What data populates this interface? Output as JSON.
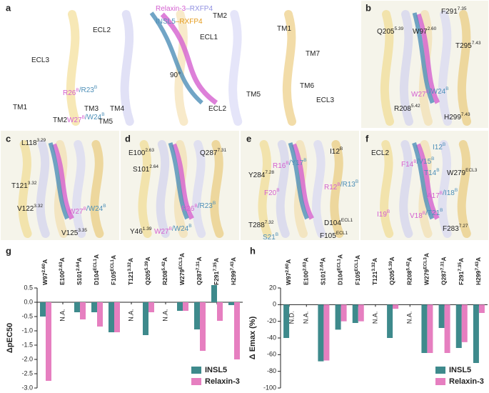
{
  "panels": [
    {
      "label": "a",
      "texts": [
        {
          "segments": [
            {
              "text": "Relaxin-3"
            },
            {
              "text": "–RXFP4"
            }
          ]
        },
        {
          "segments": [
            {
              "text": "INSL5"
            },
            {
              "text": "–RXFP4"
            }
          ]
        },
        {
          "segments": [
            {
              "text": "ECL2"
            }
          ]
        },
        {
          "segments": [
            {
              "text": "ECL3"
            }
          ]
        },
        {
          "segments": [
            {
              "text": "R26",
              "sup": "B"
            },
            {
              "text": "/R23",
              "sup": "B"
            }
          ]
        },
        {
          "segments": [
            {
              "text": "TM1"
            }
          ]
        },
        {
          "segments": [
            {
              "text": "TM3"
            }
          ]
        },
        {
          "segments": [
            {
              "text": "TM4"
            }
          ]
        },
        {
          "segments": [
            {
              "text": "W27",
              "sup": "B"
            },
            {
              "text": "/W24",
              "sup": "B"
            }
          ]
        },
        {
          "segments": [
            {
              "text": "TM2"
            }
          ]
        },
        {
          "segments": [
            {
              "text": "TM5"
            }
          ]
        },
        {
          "segments": [
            {
              "text": "90°"
            }
          ]
        },
        {
          "segments": [
            {
              "text": "TM2"
            }
          ]
        },
        {
          "segments": [
            {
              "text": "TM1"
            }
          ]
        },
        {
          "segments": [
            {
              "text": "ECL1"
            }
          ]
        },
        {
          "segments": [
            {
              "text": "TM7"
            }
          ]
        },
        {
          "segments": [
            {
              "text": "TM6"
            }
          ]
        },
        {
          "segments": [
            {
              "text": "TM5"
            }
          ]
        },
        {
          "segments": [
            {
              "text": "ECL3"
            }
          ]
        },
        {
          "segments": [
            {
              "text": "ECL2"
            }
          ]
        }
      ]
    },
    {
      "label": "b",
      "texts": [
        {
          "segments": [
            {
              "text": "F291",
              "sup": "7.35"
            }
          ]
        },
        {
          "segments": [
            {
              "text": "Q205",
              "sup": "5.39"
            }
          ]
        },
        {
          "segments": [
            {
              "text": "W97",
              "sup": "2.60"
            }
          ]
        },
        {
          "segments": [
            {
              "text": "T295",
              "sup": "7.43"
            }
          ]
        },
        {
          "segments": [
            {
              "text": "W27",
              "sup": "B"
            },
            {
              "text": "/W24",
              "sup": "B"
            }
          ]
        },
        {
          "segments": [
            {
              "text": "R208",
              "sup": "5.42"
            }
          ]
        },
        {
          "segments": [
            {
              "text": "H299",
              "sup": "7.43"
            }
          ]
        }
      ]
    },
    {
      "label": "c",
      "texts": [
        {
          "segments": [
            {
              "text": "L118",
              "sup": "3.29"
            }
          ]
        },
        {
          "segments": [
            {
              "text": "T121",
              "sup": "3.32"
            }
          ]
        },
        {
          "segments": [
            {
              "text": "V122",
              "sup": "3.32"
            }
          ]
        },
        {
          "segments": [
            {
              "text": "W27",
              "sup": "B"
            },
            {
              "text": "/W24",
              "sup": "B"
            }
          ]
        },
        {
          "segments": [
            {
              "text": "V125",
              "sup": "3.35"
            }
          ]
        }
      ]
    },
    {
      "label": "d",
      "texts": [
        {
          "segments": [
            {
              "text": "E100",
              "sup": "2.63"
            }
          ]
        },
        {
          "segments": [
            {
              "text": "Q287",
              "sup": "7.31"
            }
          ]
        },
        {
          "segments": [
            {
              "text": "S101",
              "sup": "2.64"
            }
          ]
        },
        {
          "segments": [
            {
              "text": "R26",
              "sup": "B"
            },
            {
              "text": "/R23",
              "sup": "B"
            }
          ]
        },
        {
          "segments": [
            {
              "text": "Y46",
              "sup": "1.39"
            }
          ]
        },
        {
          "segments": [
            {
              "text": "W27",
              "sup": "B"
            },
            {
              "text": "/W24",
              "sup": "B"
            }
          ]
        }
      ]
    },
    {
      "label": "e",
      "texts": [
        {
          "segments": [
            {
              "text": "R16",
              "sup": "B"
            },
            {
              "text": "/Y17",
              "sup": "B"
            }
          ]
        },
        {
          "segments": [
            {
              "text": "I12",
              "sup": "B"
            }
          ]
        },
        {
          "segments": [
            {
              "text": "Y284",
              "sup": "7.28"
            }
          ]
        },
        {
          "segments": [
            {
              "text": "R12",
              "sup": "B"
            },
            {
              "text": "/R13",
              "sup": "B"
            }
          ]
        },
        {
          "segments": [
            {
              "text": "F20",
              "sup": "B"
            }
          ]
        },
        {
          "segments": [
            {
              "text": "T288",
              "sup": "7.32"
            }
          ]
        },
        {
          "segments": [
            {
              "text": "S21",
              "sup": "B"
            }
          ]
        },
        {
          "segments": [
            {
              "text": "D104",
              "sup": "ECL1"
            }
          ]
        },
        {
          "segments": [
            {
              "text": "F105",
              "sup": "ECL1"
            }
          ]
        }
      ]
    },
    {
      "label": "f",
      "texts": [
        {
          "segments": [
            {
              "text": "ECL2"
            }
          ]
        },
        {
          "segments": [
            {
              "text": "I12",
              "sup": "B"
            }
          ]
        },
        {
          "segments": [
            {
              "text": "F14",
              "sup": "B"
            },
            {
              "text": "/V15",
              "sup": "B"
            }
          ]
        },
        {
          "segments": [
            {
              "text": "T14",
              "sup": "B"
            }
          ]
        },
        {
          "segments": [
            {
              "text": "W279",
              "sup": "ECL3"
            }
          ]
        },
        {
          "segments": [
            {
              "text": "A17",
              "sup": "B"
            },
            {
              "text": "/I18",
              "sup": "B"
            }
          ]
        },
        {
          "segments": [
            {
              "text": "I19",
              "sup": "B"
            }
          ]
        },
        {
          "segments": [
            {
              "text": "V18",
              "sup": "B"
            },
            {
              "text": "/T21",
              "sup": "B"
            }
          ]
        },
        {
          "segments": [
            {
              "text": "F283",
              "sup": "7.27"
            }
          ]
        }
      ]
    }
  ],
  "chart_data": [
    {
      "type": "bar",
      "panel_label": "g",
      "ylabel": "ΔpEC50",
      "categories": [
        "W97",
        "E100",
        "S101",
        "D104",
        "F105",
        "T121",
        "Q205",
        "R208",
        "W279",
        "Q287",
        "F291",
        "H299"
      ],
      "category_sups": [
        "2.60",
        "2.63",
        "2.64",
        "ECL1",
        "ECL1",
        "3.32",
        "5.39",
        "5.42",
        "ECL3",
        "7.31",
        "7.35",
        "7.43"
      ],
      "category_suffix": "A",
      "series": [
        {
          "name": "INSL5",
          "color": "#3e8a8c",
          "values": [
            -0.5,
            null,
            -0.35,
            -0.35,
            -1.05,
            null,
            -1.15,
            null,
            -0.3,
            -0.95,
            0.6,
            -0.1
          ]
        },
        {
          "name": "Relaxin-3",
          "color": "#e67fc0",
          "values": [
            -2.75,
            null,
            -0.6,
            -0.85,
            -1.05,
            null,
            -0.35,
            null,
            -0.3,
            -1.7,
            -0.65,
            -2.0
          ]
        }
      ],
      "annotations": [
        {
          "category": "E100",
          "text": "N.A."
        },
        {
          "category": "T121",
          "text": "N.A."
        },
        {
          "category": "R208",
          "text": "N.A."
        }
      ],
      "ylim": [
        -3.0,
        0.5
      ],
      "yticks": [
        {
          "value": 0.5,
          "label": "0.5"
        },
        {
          "value": 0,
          "label": "0.0"
        },
        {
          "value": -0.5,
          "label": "-0.5"
        },
        {
          "value": -1,
          "label": "-1.0"
        },
        {
          "value": -1.5,
          "label": "-1.5"
        },
        {
          "value": -2,
          "label": "-2.0"
        },
        {
          "value": -2.5,
          "label": "-2.5"
        },
        {
          "value": -3,
          "label": "-3.0"
        }
      ],
      "legend": "lower right"
    },
    {
      "type": "bar",
      "panel_label": "h",
      "ylabel": "Δ Emax (%)",
      "categories": [
        "W97",
        "E100",
        "S101",
        "D104",
        "F105",
        "T121",
        "Q205",
        "R208",
        "W279",
        "Q287",
        "F291",
        "H299"
      ],
      "category_sups": [
        "2.60",
        "2.63",
        "2.64",
        "ECL1",
        "ECL1",
        "3.32",
        "5.39",
        "5.42",
        "ECL3",
        "7.31",
        "7.35",
        "7.43"
      ],
      "category_suffix": "A",
      "series": [
        {
          "name": "INSL5",
          "color": "#3e8a8c",
          "values": [
            -40,
            null,
            -68,
            -30,
            -22,
            null,
            -40,
            null,
            -58,
            -28,
            -52,
            -70
          ]
        },
        {
          "name": "Relaxin-3",
          "color": "#e67fc0",
          "values": [
            null,
            null,
            -67,
            -20,
            -20,
            null,
            -5,
            null,
            -58,
            -58,
            -45,
            -10
          ]
        }
      ],
      "annotations": [
        {
          "category": "W97",
          "series": "Relaxin-3",
          "text": "N.D."
        },
        {
          "category": "E100",
          "text": "N.A."
        },
        {
          "category": "T121",
          "text": "N.A."
        },
        {
          "category": "R208",
          "text": "N.A."
        }
      ],
      "ylim": [
        -100,
        20
      ],
      "yticks": [
        20,
        0,
        -20,
        -40,
        -60,
        -80,
        -100
      ],
      "legend": "lower right"
    }
  ]
}
